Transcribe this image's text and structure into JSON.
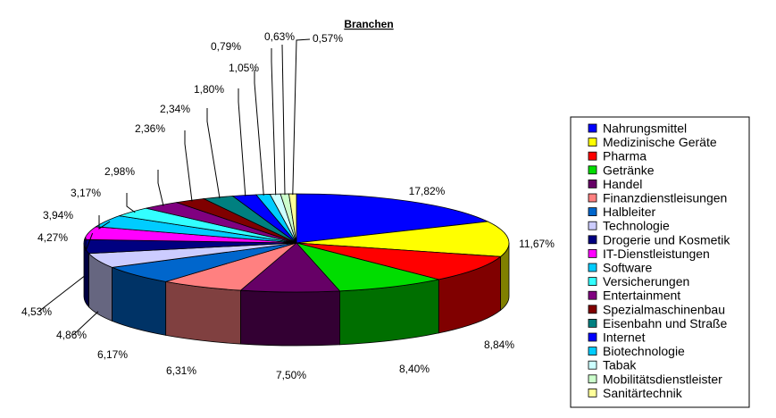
{
  "chart_data": {
    "type": "pie",
    "title": "Branchen",
    "value_format": "percent-comma-2",
    "legend_position": "right",
    "three_d": true,
    "categories": [
      "Nahrungsmittel",
      "Medizinische Geräte",
      "Pharma",
      "Getränke",
      "Handel",
      "Finanzdienstleisungen",
      "Halbleiter",
      "Technologie",
      "Drogerie und Kosmetik",
      "IT-Dienstleistungen",
      "Software",
      "Versicherungen",
      "Entertainment",
      "Spezialmaschinenbau",
      "Eisenbahn und Straße",
      "Internet",
      "Biotechnologie",
      "Tabak",
      "Mobilitätsdienstleister",
      "Sanitärtechnik"
    ],
    "values": [
      17.82,
      11.67,
      8.84,
      8.4,
      7.5,
      6.31,
      6.17,
      4.86,
      4.53,
      4.27,
      3.94,
      3.17,
      2.98,
      2.36,
      2.34,
      1.8,
      1.05,
      0.79,
      0.63,
      0.57
    ],
    "labels": [
      "17,82%",
      "11,67%",
      "8,84%",
      "8,40%",
      "7,50%",
      "6,31%",
      "6,17%",
      "4,86%",
      "4,53%",
      "4,27%",
      "3,94%",
      "3,17%",
      "2,98%",
      "2,36%",
      "2,34%",
      "1,80%",
      "1,05%",
      "0,79%",
      "0,63%",
      "0,57%"
    ],
    "colors": [
      "#0000FF",
      "#FFFF00",
      "#FF0000",
      "#00DD00",
      "#660066",
      "#FF8080",
      "#0066CC",
      "#CCCCFF",
      "#000080",
      "#FF00FF",
      "#00CCFF",
      "#33FFFF",
      "#800080",
      "#800000",
      "#008080",
      "#0000FF",
      "#00CCFF",
      "#CCFFFF",
      "#CCFFCC",
      "#FFFF99"
    ]
  }
}
